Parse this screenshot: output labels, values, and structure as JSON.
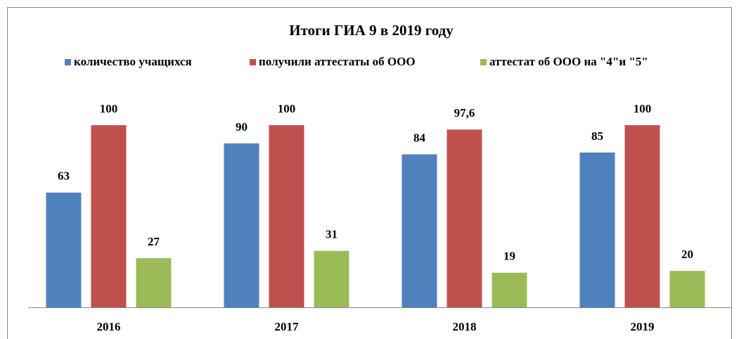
{
  "chart_data": {
    "type": "bar",
    "title": "Итоги ГИА 9 в 2019 году",
    "categories": [
      "2016",
      "2017",
      "2018",
      "2019"
    ],
    "series": [
      {
        "name": "количество учащихся",
        "color": "#4f81bd",
        "values": [
          63,
          90,
          84,
          85
        ]
      },
      {
        "name": "получили аттестаты об ООО",
        "color": "#c0504d",
        "values": [
          100,
          100,
          97.6,
          100
        ],
        "value_labels": [
          "100",
          "100",
          "97,6",
          "100"
        ]
      },
      {
        "name": "аттестат об ООО на \"4\"и \"5\"",
        "color": "#9bbb59",
        "values": [
          27,
          31,
          19,
          20
        ]
      }
    ],
    "ylim": [
      0,
      100
    ],
    "legend": "top"
  }
}
